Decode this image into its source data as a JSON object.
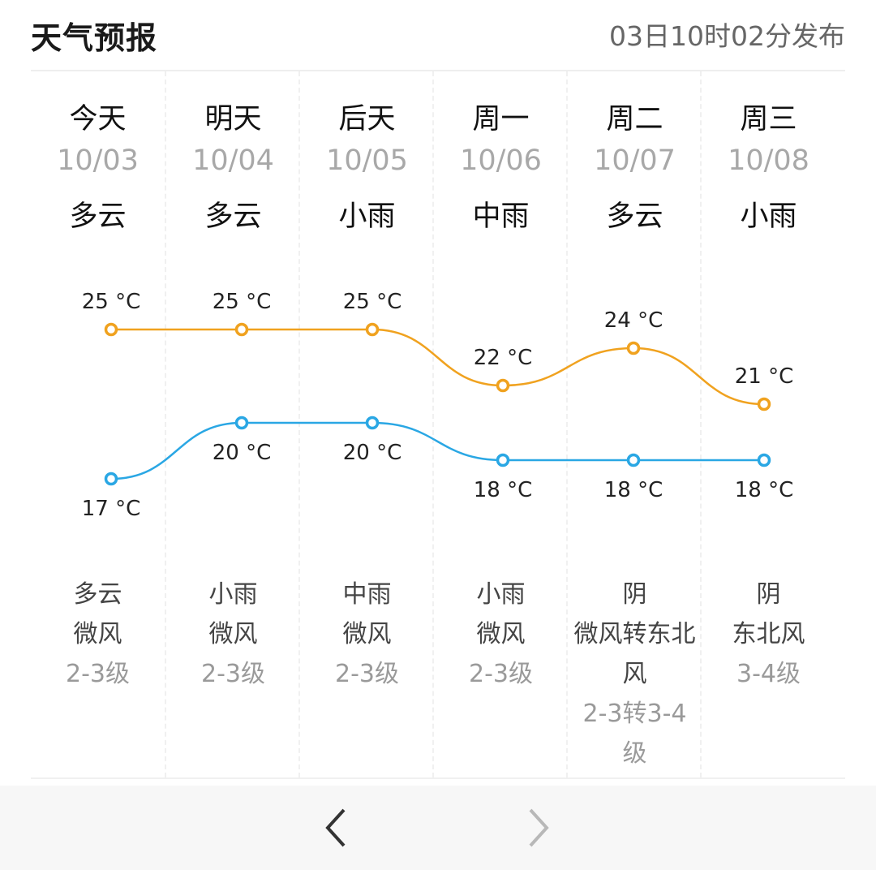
{
  "header": {
    "title": "天气预报",
    "published": "03日10时02分发布"
  },
  "days": [
    {
      "day": "今天",
      "date": "10/03",
      "day_weather": "多云",
      "night_weather": "多云",
      "wind": "微风",
      "wind_level": "2-3级"
    },
    {
      "day": "明天",
      "date": "10/04",
      "day_weather": "多云",
      "night_weather": "小雨",
      "wind": "微风",
      "wind_level": "2-3级"
    },
    {
      "day": "后天",
      "date": "10/05",
      "day_weather": "小雨",
      "night_weather": "中雨",
      "wind": "微风",
      "wind_level": "2-3级"
    },
    {
      "day": "周一",
      "date": "10/06",
      "day_weather": "中雨",
      "night_weather": "小雨",
      "wind": "微风",
      "wind_level": "2-3级"
    },
    {
      "day": "周二",
      "date": "10/07",
      "day_weather": "多云",
      "night_weather": "阴",
      "wind": "微风转东北风",
      "wind_level": "2-3转3-4级"
    },
    {
      "day": "周三",
      "date": "10/08",
      "day_weather": "小雨",
      "night_weather": "阴",
      "wind": "东北风",
      "wind_level": "3-4级"
    }
  ],
  "chart_data": {
    "type": "line",
    "x": [
      "10/03",
      "10/04",
      "10/05",
      "10/06",
      "10/07",
      "10/08"
    ],
    "series": [
      {
        "values": [
          25,
          25,
          25,
          22,
          24,
          21
        ],
        "color": "#f0a21f",
        "labels": [
          "25 °C",
          "25 °C",
          "25 °C",
          "22 °C",
          "24 °C",
          "21 °C"
        ]
      },
      {
        "values": [
          17,
          20,
          20,
          18,
          18,
          18
        ],
        "color": "#2aa7e4",
        "labels": [
          "17 °C",
          "20 °C",
          "20 °C",
          "18 °C",
          "18 °C",
          "18 °C"
        ]
      }
    ]
  },
  "nav": {
    "prev_icon": "chevron-left-icon",
    "next_icon": "chevron-right-icon",
    "prev_color": "#333333",
    "next_color": "#b8b8b8"
  }
}
